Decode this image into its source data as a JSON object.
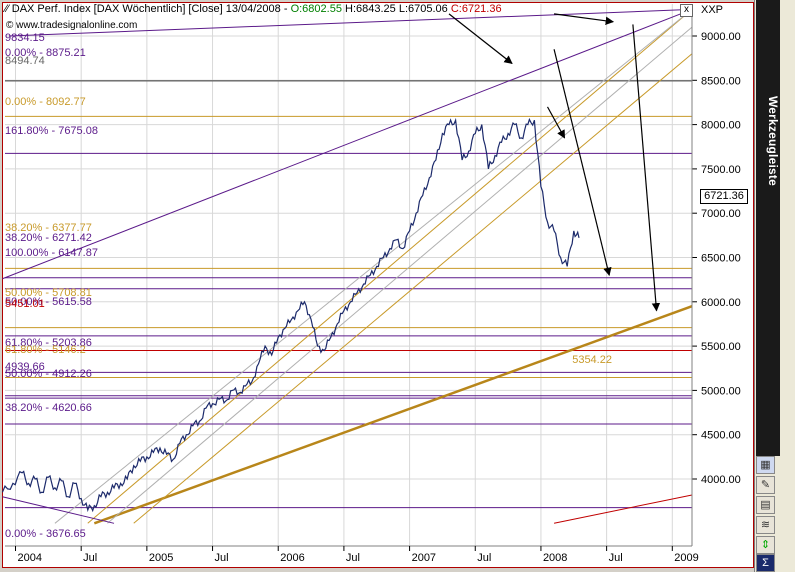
{
  "header": {
    "icon": "chart-line-icon",
    "instrument": "DAX Perf. Index [DAX Wöchentlich] [Close] 13/04/2008 - ",
    "open": "O:6802.55",
    "high": "H:6843.25",
    "low": "L:6705.06",
    "close": "C:6721.36",
    "source": "© www.tradesignalonline.com",
    "close_button": "x",
    "axis_unit": "XXP"
  },
  "toolbar": {
    "title": "Werkzeugleiste",
    "buttons": [
      "grid-icon",
      "wrench-icon",
      "note-icon",
      "bar-chart-icon",
      "indicator-icon",
      "arrows-icon",
      "sigma-icon"
    ]
  },
  "colors": {
    "price": "#1c2a6b",
    "fib_purple": "#5b1a8a",
    "fib_gold": "#c89a2a",
    "trend_gold": "#b8861a",
    "red": "#c00000",
    "grid": "#d8d8d8"
  },
  "chart_data": {
    "type": "line",
    "title": "DAX Perf. Index [DAX Wöchentlich] [Close]",
    "xlabel": "",
    "ylabel": "",
    "last_price": "6721.36",
    "ylim": [
      3500,
      9300
    ],
    "xlim": [
      "2003-11",
      "2009-03"
    ],
    "y_ticks": [
      "9000.00",
      "8500.00",
      "8000.00",
      "7500.00",
      "7000.00",
      "6500.00",
      "6000.00",
      "5500.00",
      "5000.00",
      "4500.00",
      "4000.00"
    ],
    "x_ticks": [
      {
        "label": "2004",
        "t": 2004.0
      },
      {
        "label": "Jul",
        "t": 2004.5
      },
      {
        "label": "2005",
        "t": 2005.0
      },
      {
        "label": "Jul",
        "t": 2005.5
      },
      {
        "label": "2006",
        "t": 2006.0
      },
      {
        "label": "Jul",
        "t": 2006.5
      },
      {
        "label": "2007",
        "t": 2007.0
      },
      {
        "label": "Jul",
        "t": 2007.5
      },
      {
        "label": "2008",
        "t": 2008.0
      },
      {
        "label": "Jul",
        "t": 2008.5
      },
      {
        "label": "2009",
        "t": 2009.0
      }
    ],
    "series": [
      {
        "x": [
          2003.9,
          2003.98,
          2004.05,
          2004.1,
          2004.15,
          2004.2,
          2004.25,
          2004.3,
          2004.35,
          2004.4,
          2004.45,
          2004.5,
          2004.55,
          2004.6,
          2004.65,
          2004.7,
          2004.75,
          2004.8,
          2004.85,
          2004.9,
          2004.95,
          2005.0,
          2005.05,
          2005.1,
          2005.15,
          2005.2,
          2005.25,
          2005.3,
          2005.35,
          2005.4,
          2005.45,
          2005.5,
          2005.55,
          2005.6,
          2005.65,
          2005.7,
          2005.75,
          2005.8,
          2005.85,
          2005.9,
          2005.95,
          2006.0,
          2006.05,
          2006.1,
          2006.15,
          2006.2,
          2006.25,
          2006.3,
          2006.35,
          2006.4,
          2006.45,
          2006.5,
          2006.55,
          2006.6,
          2006.65,
          2006.7,
          2006.75,
          2006.8,
          2006.85,
          2006.9,
          2006.95,
          2007.0,
          2007.05,
          2007.1,
          2007.15,
          2007.2,
          2007.25,
          2007.3,
          2007.35,
          2007.4,
          2007.45,
          2007.5,
          2007.55,
          2007.6,
          2007.65,
          2007.7,
          2007.75,
          2007.8,
          2007.85,
          2007.9,
          2007.95,
          2008.0,
          2008.05,
          2008.1,
          2008.15,
          2008.2,
          2008.25,
          2008.29
        ],
        "values": [
          3850,
          3950,
          4070,
          3950,
          4000,
          3850,
          4020,
          3900,
          3980,
          3800,
          3950,
          3780,
          3650,
          3700,
          3800,
          3850,
          3900,
          3950,
          4000,
          4150,
          4200,
          4250,
          4300,
          4350,
          4280,
          4220,
          4400,
          4500,
          4600,
          4650,
          4800,
          4850,
          4900,
          4880,
          5000,
          4970,
          5050,
          5100,
          5300,
          5500,
          5400,
          5600,
          5700,
          5800,
          5900,
          6000,
          5800,
          5500,
          5450,
          5600,
          5750,
          5900,
          6000,
          6100,
          6200,
          6300,
          6400,
          6500,
          6600,
          6700,
          6600,
          6800,
          7000,
          7200,
          7400,
          7600,
          7900,
          8000,
          8050,
          7600,
          7700,
          7900,
          8000,
          7500,
          7650,
          7800,
          7900,
          8000,
          7850,
          8000,
          8050,
          7300,
          6900,
          6800,
          6500,
          6400,
          6800,
          6721.36
        ]
      }
    ],
    "fib_levels": [
      {
        "label": "9834.15",
        "color": "purple"
      },
      {
        "label": "0.00% - 8875.21",
        "color": "purple"
      },
      {
        "label": "8494.74",
        "color": "gray",
        "y": 8494.74
      },
      {
        "label": "0.00% - 8092.77",
        "color": "gold",
        "y": 8092.77
      },
      {
        "label": "161.80% - 7675.08",
        "color": "purple",
        "y": 7675.08
      },
      {
        "label": "38.20% - 6377.77",
        "color": "gold",
        "y": 6377.77
      },
      {
        "label": "38.20% - 6271.42",
        "color": "purple",
        "y": 6271.42
      },
      {
        "label": "100.00% - 6147.87",
        "color": "purple",
        "y": 6147.87
      },
      {
        "label": "50.00% - 5708.81",
        "color": "gold",
        "y": 5708.81
      },
      {
        "label": "50.00% - 5615.58",
        "color": "purple",
        "y": 5615.58
      },
      {
        "label": "5451.01",
        "color": "red",
        "y": 5451.01
      },
      {
        "label": "61.80% - 5203.86",
        "color": "purple",
        "y": 5203.86
      },
      {
        "label": "61.80% - 5146.2",
        "color": "gold",
        "y": 5146.2
      },
      {
        "label": "4939.66",
        "color": "purple",
        "y": 4939.66
      },
      {
        "label": "50.00% - 4912.26",
        "color": "purple",
        "y": 4912.26
      },
      {
        "label": "38.20% - 4620.66",
        "color": "purple",
        "y": 4620.66
      },
      {
        "label": "0.00% - 3676.65",
        "color": "purple",
        "y": 3676.65
      }
    ],
    "annotations": [
      {
        "label": "5354.22",
        "x": 2008.2,
        "y": 5354.22
      }
    ],
    "trend_lines": [
      {
        "name": "upper-channel-purple",
        "from": [
          2003.95,
          9000
        ],
        "to": [
          2009.15,
          9300
        ],
        "color": "purple"
      },
      {
        "name": "long-trend-purple",
        "from": [
          2003.9,
          6260
        ],
        "to": [
          2009.15,
          9300
        ],
        "color": "purple"
      },
      {
        "name": "lower-trend-gold-thick",
        "from": [
          2004.6,
          3500
        ],
        "to": [
          2009.15,
          5950
        ],
        "color": "trend_gold",
        "thick": true
      },
      {
        "name": "channel-gold-a",
        "from": [
          2004.55,
          3500
        ],
        "to": [
          2009.15,
          9300
        ],
        "color": "fib_gold"
      },
      {
        "name": "channel-gold-b",
        "from": [
          2004.9,
          3500
        ],
        "to": [
          2009.15,
          8800
        ],
        "color": "fib_gold"
      },
      {
        "name": "channel-gray-a",
        "from": [
          2004.3,
          3500
        ],
        "to": [
          2009.15,
          9300
        ],
        "color": "grid"
      },
      {
        "name": "channel-gray-b",
        "from": [
          2004.7,
          3500
        ],
        "to": [
          2009.15,
          9100
        ],
        "color": "grid"
      },
      {
        "name": "red-lower",
        "from": [
          2008.1,
          3500
        ],
        "to": [
          2009.15,
          3820
        ],
        "color": "red"
      },
      {
        "name": "purple-decline",
        "from": [
          2003.9,
          3800
        ],
        "to": [
          2004.75,
          3500
        ],
        "color": "purple"
      }
    ],
    "arrows": [
      {
        "from": [
          2007.3,
          9250
        ],
        "to": [
          2007.78,
          8690
        ]
      },
      {
        "from": [
          2008.1,
          9250
        ],
        "to": [
          2008.55,
          9160
        ]
      },
      {
        "from": [
          2008.1,
          8850
        ],
        "to": [
          2008.52,
          6300
        ]
      },
      {
        "from": [
          2008.05,
          8200
        ],
        "to": [
          2008.18,
          7850
        ]
      },
      {
        "from": [
          2008.7,
          9130
        ],
        "to": [
          2008.88,
          5900
        ]
      }
    ],
    "grid": true
  }
}
